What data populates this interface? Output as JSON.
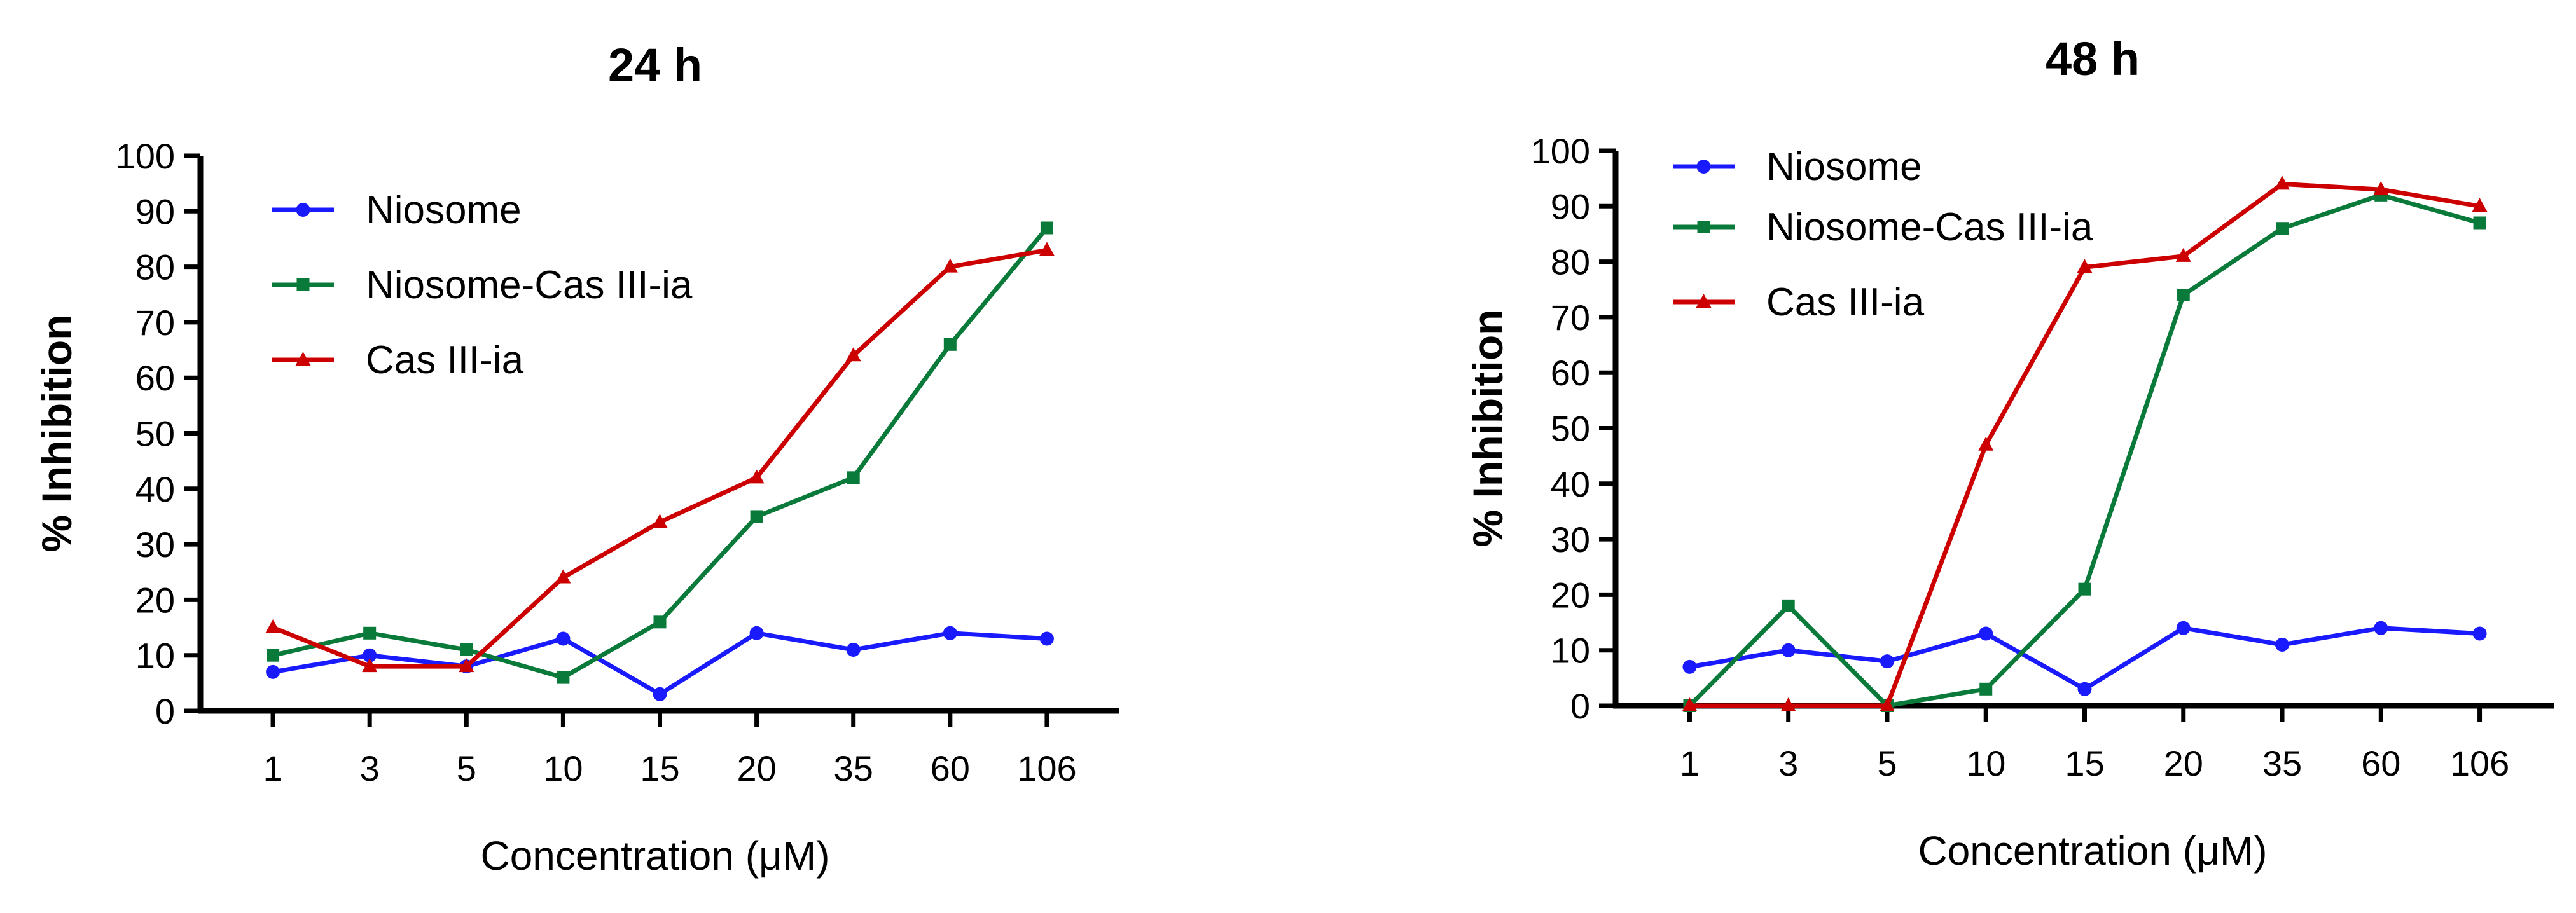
{
  "chart_data": [
    {
      "type": "line",
      "title": "24 h",
      "xlabel": "Concentration (μM)",
      "ylabel": "% Inhibition",
      "categories": [
        "1",
        "3",
        "5",
        "10",
        "15",
        "20",
        "35",
        "60",
        "106"
      ],
      "ylim": [
        0,
        100
      ],
      "yticks": [
        0,
        10,
        20,
        30,
        40,
        50,
        60,
        70,
        80,
        90,
        100
      ],
      "grid": false,
      "legend_position": "top-left",
      "series": [
        {
          "name": "Niosome",
          "color": "#1a1aff",
          "marker": "circle",
          "values": [
            7,
            10,
            8,
            13,
            3,
            14,
            11,
            14,
            13
          ]
        },
        {
          "name": "Niosome-Cas III-ia",
          "color": "#0a7a3a",
          "marker": "square",
          "values": [
            10,
            14,
            11,
            6,
            16,
            35,
            42,
            66,
            87
          ]
        },
        {
          "name": "Cas III-ia",
          "color": "#cc0000",
          "marker": "triangle",
          "values": [
            15,
            8,
            8,
            24,
            34,
            42,
            64,
            80,
            83
          ]
        }
      ]
    },
    {
      "type": "line",
      "title": "48 h",
      "xlabel": "Concentration (μM)",
      "ylabel": "% Inhibition",
      "categories": [
        "1",
        "3",
        "5",
        "10",
        "15",
        "20",
        "35",
        "60",
        "106"
      ],
      "ylim": [
        0,
        100
      ],
      "yticks": [
        0,
        10,
        20,
        30,
        40,
        50,
        60,
        70,
        80,
        90,
        100
      ],
      "grid": false,
      "legend_position": "top-left",
      "series": [
        {
          "name": "Niosome",
          "color": "#1a1aff",
          "marker": "circle",
          "values": [
            7,
            10,
            8,
            13,
            3,
            14,
            11,
            14,
            13
          ]
        },
        {
          "name": "Niosome-Cas III-ia",
          "color": "#0a7a3a",
          "marker": "square",
          "values": [
            0,
            18,
            0,
            3,
            21,
            74,
            86,
            92,
            87
          ]
        },
        {
          "name": "Cas III-ia",
          "color": "#cc0000",
          "marker": "triangle",
          "values": [
            0,
            0,
            0,
            47,
            79,
            81,
            94,
            93,
            90
          ]
        }
      ]
    }
  ]
}
